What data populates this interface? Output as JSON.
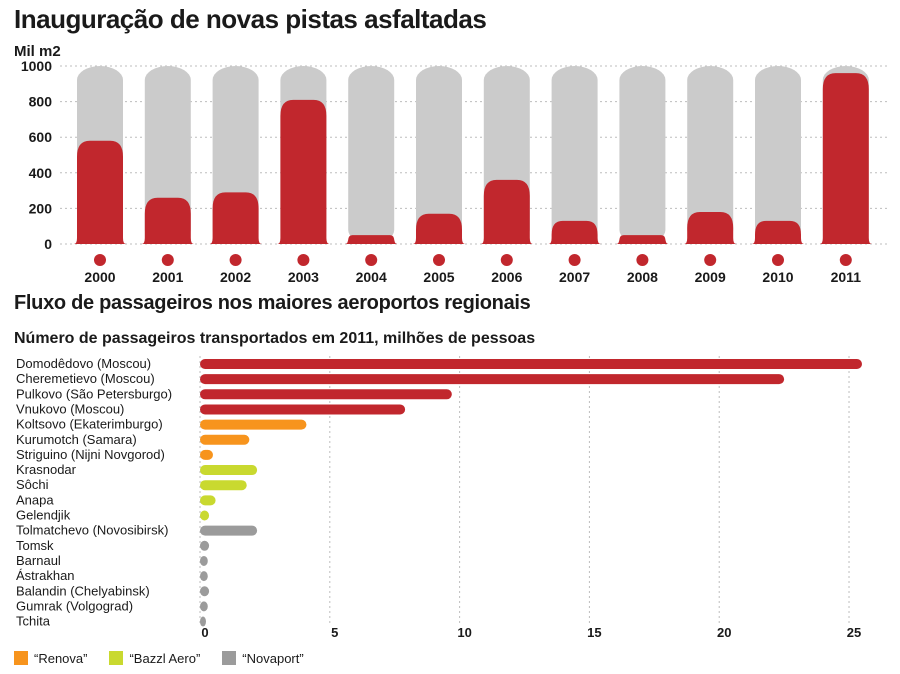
{
  "colors": {
    "red": "#c1272d",
    "gray_track": "#cbcbcb",
    "orange": "#f7941d",
    "lime": "#c9d92f",
    "gray": "#9b9b9b"
  },
  "chart_data": [
    {
      "type": "bar",
      "title": "Inauguração de novas pistas asfaltadas",
      "ylabel": "Mil m2",
      "categories": [
        "2000",
        "2001",
        "2002",
        "2003",
        "2004",
        "2005",
        "2006",
        "2007",
        "2008",
        "2009",
        "2010",
        "2011"
      ],
      "values": [
        580,
        260,
        290,
        810,
        50,
        170,
        360,
        130,
        50,
        180,
        130,
        960
      ],
      "ylim": [
        0,
        1000
      ],
      "yticks": [
        "0",
        "200",
        "400",
        "600",
        "800",
        "1000"
      ],
      "grid": true
    },
    {
      "type": "bar",
      "orientation": "horizontal",
      "title": "Fluxo de passageiros nos maiores aeroportos regionais",
      "subtitle": "Número de passageiros transportados em 2011, milhões de pessoas",
      "categories": [
        "Domodêdovo (Moscou)",
        "Cheremetievo (Moscou)",
        "Pulkovo (São Petersburgo)",
        "Vnukovo (Moscou)",
        "Koltsovo (Ekaterimburgo)",
        "Kurumotch (Samara)",
        "Striguino (Nijni Novgorod)",
        "Krasnodar",
        "Sôchi",
        "Anapa",
        "Gelendjik",
        "Tolmatchevo (Novosibirsk)",
        "Tomsk",
        "Barnaul",
        "Ástrakhan",
        "Balandin (Chelyabinsk)",
        "Gumrak (Volgograd)",
        "Tchita"
      ],
      "values": [
        25.5,
        22.5,
        9.7,
        7.9,
        4.1,
        1.9,
        0.5,
        2.2,
        1.8,
        0.6,
        0.35,
        2.2,
        0.35,
        0.3,
        0.3,
        0.35,
        0.3,
        0.15
      ],
      "groups": [
        "none",
        "none",
        "none",
        "none",
        "Renova",
        "Renova",
        "Renova",
        "Bazzl Aero",
        "Bazzl Aero",
        "Bazzl Aero",
        "Bazzl Aero",
        "Novaport",
        "Novaport",
        "Novaport",
        "Novaport",
        "Novaport",
        "Novaport",
        "Novaport"
      ],
      "xlim": [
        0,
        25.5
      ],
      "xticks": [
        "0",
        "5",
        "10",
        "15",
        "20",
        "25"
      ],
      "grid": true,
      "legend": {
        "placement": "bottom-left",
        "items": [
          {
            "label": "“Renova”",
            "color": "#f7941d"
          },
          {
            "label": "“Bazzl Aero”",
            "color": "#c9d92f"
          },
          {
            "label": "“Novaport”",
            "color": "#9b9b9b"
          }
        ]
      }
    }
  ]
}
